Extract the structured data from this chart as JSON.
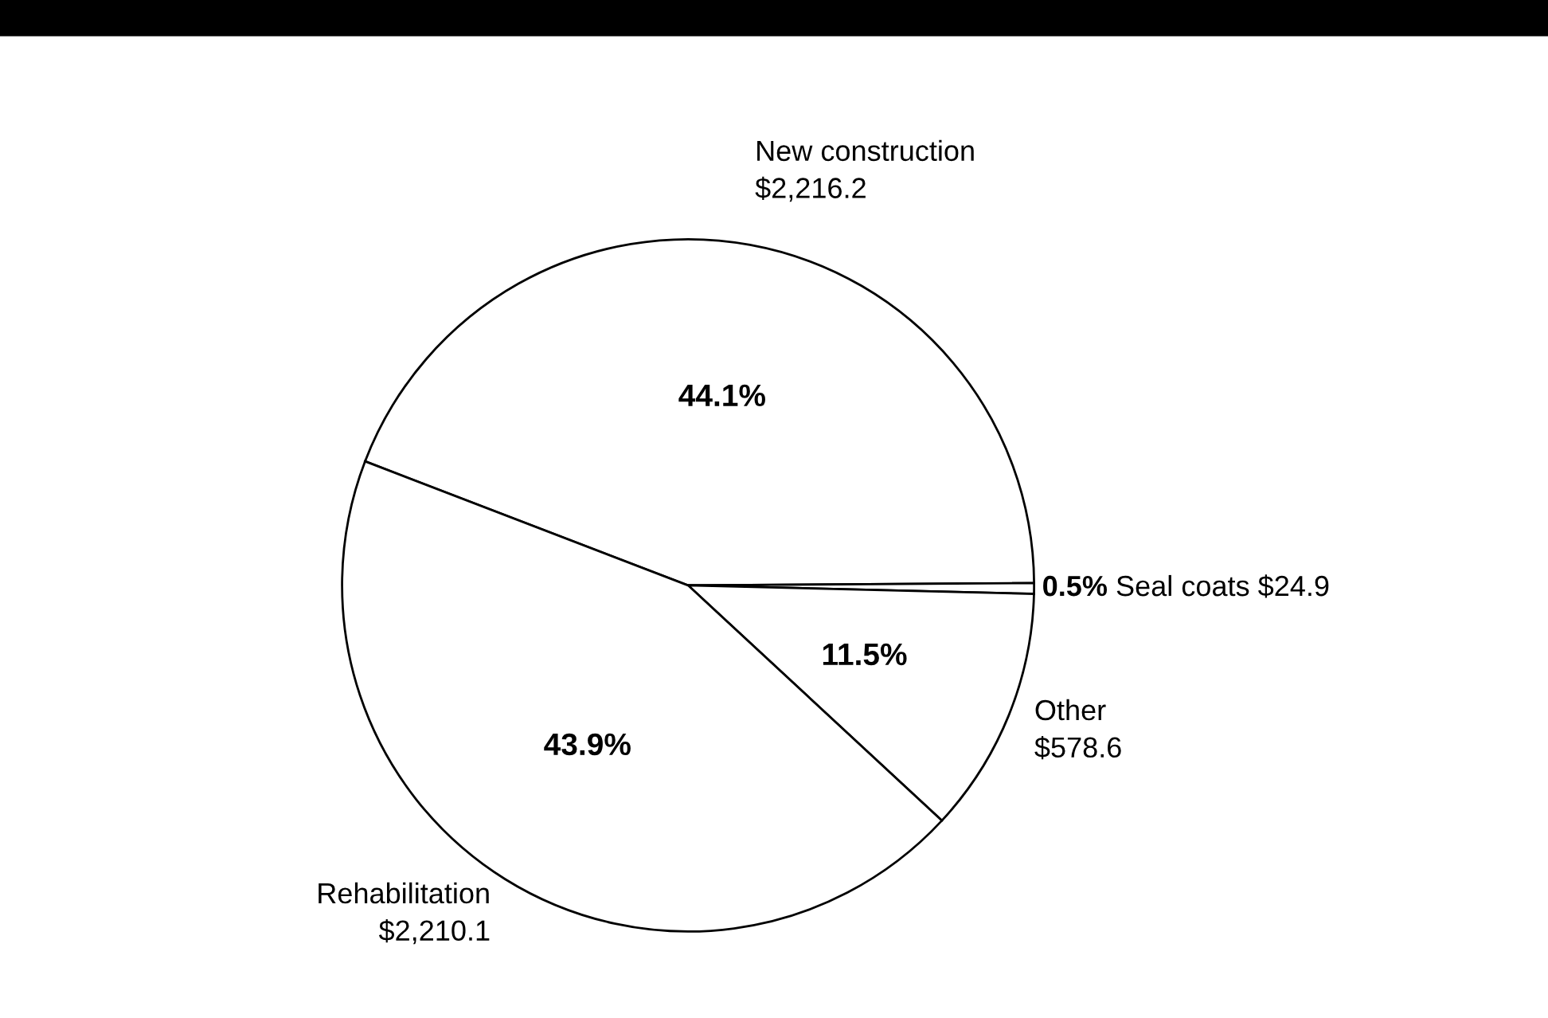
{
  "chart_data": {
    "type": "pie",
    "categories": [
      "New construction",
      "Seal coats",
      "Other",
      "Rehabilitation"
    ],
    "values": [
      2216.2,
      24.9,
      578.6,
      2210.1
    ],
    "colors": [
      "#ffffff",
      "#ffffff",
      "#ffffff",
      "#ffffff"
    ],
    "value_labels": [
      "$2,216.2",
      "$24.9",
      "$578.6",
      "$2,210.1"
    ],
    "annotations": [
      {
        "text": "44.1%",
        "x": "New construction"
      },
      {
        "text": "0.5%",
        "x": "Seal coats"
      },
      {
        "text": "11.5%",
        "x": "Other"
      },
      {
        "text": "43.9%",
        "x": "Rehabilitation"
      }
    ],
    "legend": false
  }
}
